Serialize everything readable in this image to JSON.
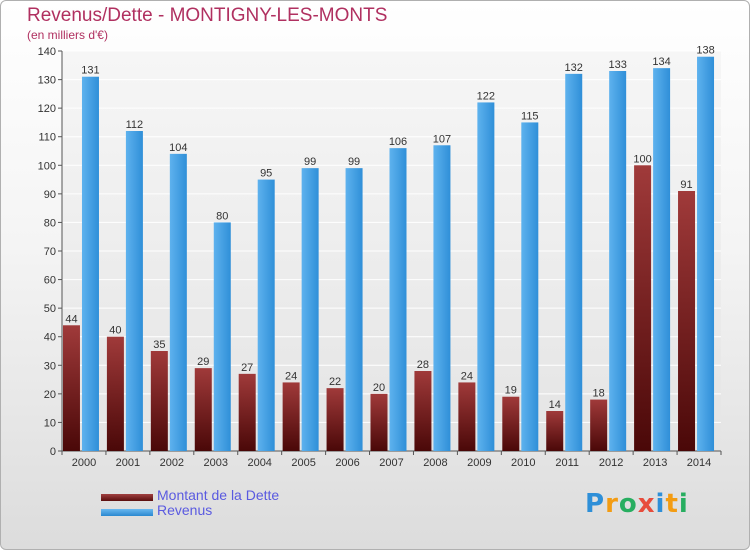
{
  "title": "Revenus/Dette - MONTIGNY-LES-MONTS",
  "subtitle": "(en milliers d'€)",
  "colors": {
    "dette": "#7a1f1f",
    "revenus": "#3a9ae0",
    "title": "#b03060",
    "legend_text": "#5a5ae0"
  },
  "chart_data": {
    "type": "bar",
    "categories": [
      "2000",
      "2001",
      "2002",
      "2003",
      "2004",
      "2005",
      "2006",
      "2007",
      "2008",
      "2009",
      "2010",
      "2011",
      "2012",
      "2013",
      "2014"
    ],
    "series": [
      {
        "name": "Montant de la Dette",
        "values": [
          44,
          40,
          35,
          29,
          27,
          24,
          22,
          20,
          28,
          24,
          19,
          14,
          18,
          100,
          91
        ]
      },
      {
        "name": "Revenus",
        "values": [
          131,
          112,
          104,
          80,
          95,
          99,
          99,
          106,
          107,
          122,
          115,
          132,
          133,
          134,
          138
        ]
      }
    ],
    "title": "Revenus/Dette - MONTIGNY-LES-MONTS",
    "subtitle": "(en milliers d'€)",
    "ylim": [
      0,
      140
    ],
    "yticks": [
      0,
      10,
      20,
      30,
      40,
      50,
      60,
      70,
      80,
      90,
      100,
      110,
      120,
      130,
      140
    ],
    "grid": true,
    "legend_position": "bottom-left"
  },
  "legend": [
    {
      "label": "Montant de la Dette"
    },
    {
      "label": "Revenus"
    }
  ],
  "logo": {
    "text": "Proxiti"
  }
}
